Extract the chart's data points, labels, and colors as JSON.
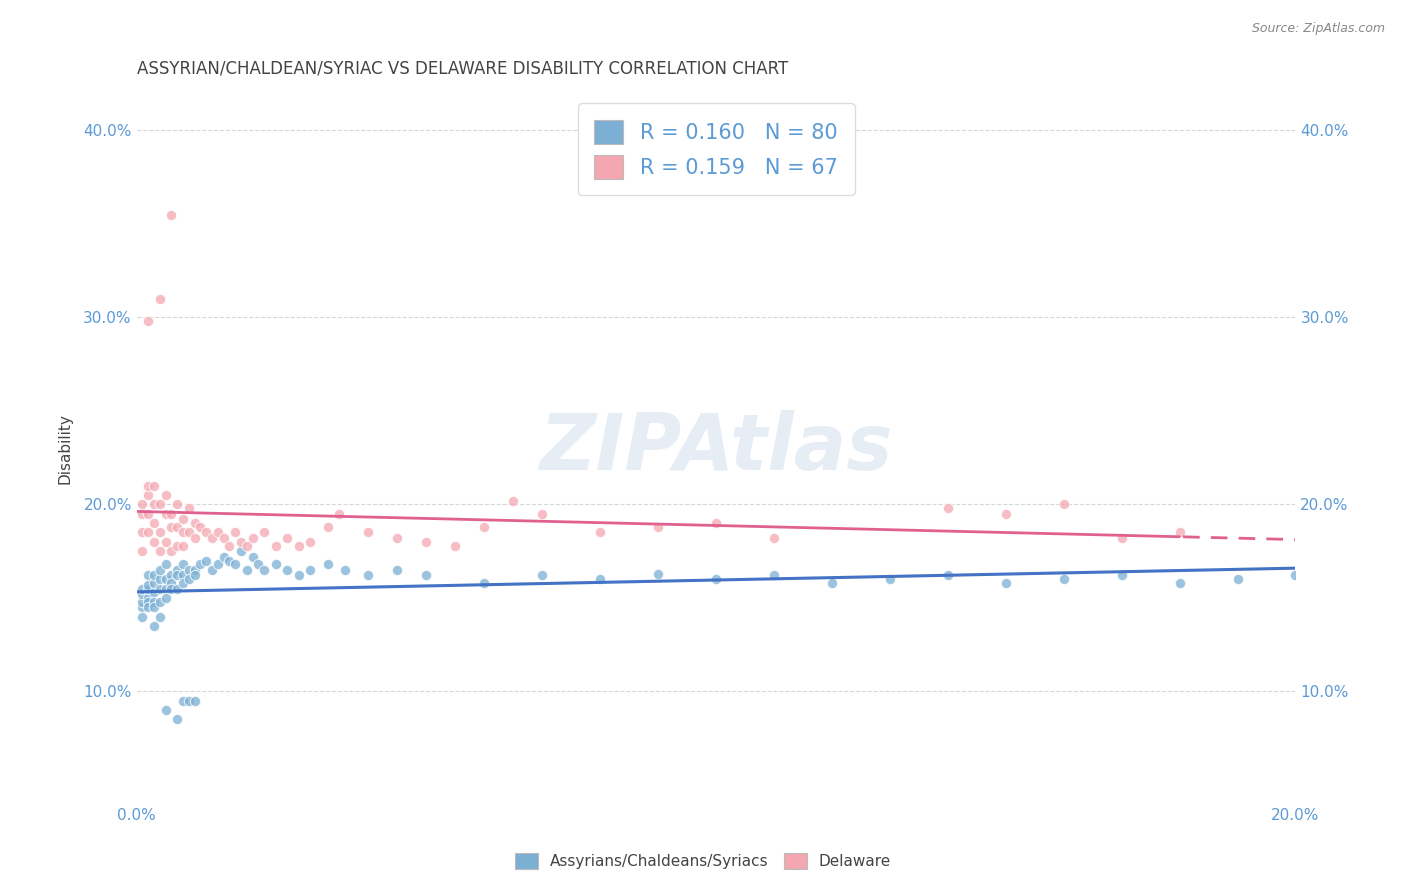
{
  "title": "ASSYRIAN/CHALDEAN/SYRIAC VS DELAWARE DISABILITY CORRELATION CHART",
  "source": "Source: ZipAtlas.com",
  "ylabel": "Disability",
  "xlim": [
    0.0,
    0.2
  ],
  "ylim": [
    0.04,
    0.42
  ],
  "yticks": [
    0.1,
    0.2,
    0.3,
    0.4
  ],
  "ytick_labels": [
    "10.0%",
    "20.0%",
    "30.0%",
    "40.0%"
  ],
  "xticks": [
    0.0,
    0.04,
    0.08,
    0.12,
    0.16,
    0.2
  ],
  "xtick_labels": [
    "0.0%",
    "",
    "",
    "",
    "",
    "20.0%"
  ],
  "blue_R": 0.16,
  "blue_N": 80,
  "pink_R": 0.159,
  "pink_N": 67,
  "blue_color": "#7bafd4",
  "pink_color": "#f4a7b0",
  "blue_line_color": "#4472c4",
  "pink_line_color": "#e06090",
  "background_color": "#ffffff",
  "grid_color": "#cccccc",
  "watermark": "ZIPAtlas",
  "legend_label_blue": "Assyrians/Chaldeans/Syriacs",
  "legend_label_pink": "Delaware",
  "title_color": "#444444",
  "axis_color": "#5b9bd5",
  "blue_scatter_x": [
    0.001,
    0.001,
    0.001,
    0.001,
    0.001,
    0.002,
    0.002,
    0.002,
    0.002,
    0.002,
    0.002,
    0.003,
    0.003,
    0.003,
    0.003,
    0.003,
    0.004,
    0.004,
    0.004,
    0.004,
    0.005,
    0.005,
    0.005,
    0.005,
    0.006,
    0.006,
    0.006,
    0.007,
    0.007,
    0.007,
    0.008,
    0.008,
    0.008,
    0.009,
    0.009,
    0.01,
    0.01,
    0.011,
    0.012,
    0.013,
    0.014,
    0.015,
    0.016,
    0.017,
    0.018,
    0.019,
    0.02,
    0.021,
    0.022,
    0.024,
    0.026,
    0.028,
    0.03,
    0.033,
    0.036,
    0.04,
    0.045,
    0.05,
    0.06,
    0.07,
    0.08,
    0.09,
    0.1,
    0.11,
    0.12,
    0.13,
    0.14,
    0.15,
    0.16,
    0.17,
    0.18,
    0.19,
    0.2,
    0.003,
    0.004,
    0.005,
    0.007,
    0.008,
    0.009,
    0.01
  ],
  "blue_scatter_y": [
    0.145,
    0.148,
    0.152,
    0.155,
    0.14,
    0.15,
    0.155,
    0.148,
    0.162,
    0.145,
    0.157,
    0.153,
    0.158,
    0.148,
    0.162,
    0.145,
    0.16,
    0.155,
    0.165,
    0.148,
    0.16,
    0.155,
    0.15,
    0.168,
    0.162,
    0.158,
    0.155,
    0.165,
    0.162,
    0.155,
    0.168,
    0.162,
    0.158,
    0.165,
    0.16,
    0.165,
    0.162,
    0.168,
    0.17,
    0.165,
    0.168,
    0.172,
    0.17,
    0.168,
    0.175,
    0.165,
    0.172,
    0.168,
    0.165,
    0.168,
    0.165,
    0.162,
    0.165,
    0.168,
    0.165,
    0.162,
    0.165,
    0.162,
    0.158,
    0.162,
    0.16,
    0.163,
    0.16,
    0.162,
    0.158,
    0.16,
    0.162,
    0.158,
    0.16,
    0.162,
    0.158,
    0.16,
    0.162,
    0.135,
    0.14,
    0.09,
    0.085,
    0.095,
    0.095,
    0.095
  ],
  "pink_scatter_x": [
    0.001,
    0.001,
    0.001,
    0.001,
    0.002,
    0.002,
    0.002,
    0.002,
    0.003,
    0.003,
    0.003,
    0.003,
    0.004,
    0.004,
    0.004,
    0.005,
    0.005,
    0.005,
    0.006,
    0.006,
    0.006,
    0.007,
    0.007,
    0.007,
    0.008,
    0.008,
    0.008,
    0.009,
    0.009,
    0.01,
    0.01,
    0.011,
    0.012,
    0.013,
    0.014,
    0.015,
    0.016,
    0.017,
    0.018,
    0.019,
    0.02,
    0.022,
    0.024,
    0.026,
    0.028,
    0.03,
    0.033,
    0.035,
    0.04,
    0.045,
    0.05,
    0.055,
    0.06,
    0.065,
    0.07,
    0.08,
    0.09,
    0.1,
    0.11,
    0.14,
    0.15,
    0.16,
    0.17,
    0.18,
    0.002,
    0.004,
    0.006
  ],
  "pink_scatter_y": [
    0.185,
    0.195,
    0.2,
    0.175,
    0.205,
    0.195,
    0.21,
    0.185,
    0.2,
    0.19,
    0.21,
    0.18,
    0.2,
    0.185,
    0.175,
    0.195,
    0.205,
    0.18,
    0.195,
    0.188,
    0.175,
    0.2,
    0.188,
    0.178,
    0.192,
    0.185,
    0.178,
    0.198,
    0.185,
    0.19,
    0.182,
    0.188,
    0.185,
    0.182,
    0.185,
    0.182,
    0.178,
    0.185,
    0.18,
    0.178,
    0.182,
    0.185,
    0.178,
    0.182,
    0.178,
    0.18,
    0.188,
    0.195,
    0.185,
    0.182,
    0.18,
    0.178,
    0.188,
    0.202,
    0.195,
    0.185,
    0.188,
    0.19,
    0.182,
    0.198,
    0.195,
    0.2,
    0.182,
    0.185,
    0.298,
    0.31,
    0.355
  ]
}
